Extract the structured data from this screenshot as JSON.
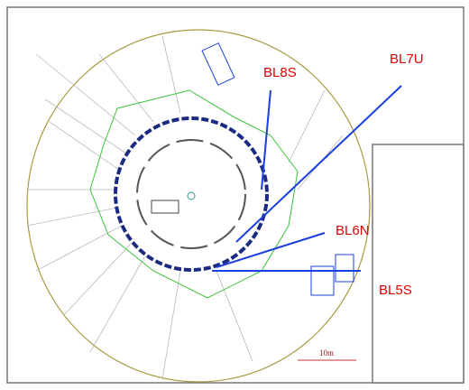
{
  "beamlines": [
    "BL8S",
    "BL7U",
    "BL6N",
    "BL5S"
  ],
  "scale_bar": "10m"
}
